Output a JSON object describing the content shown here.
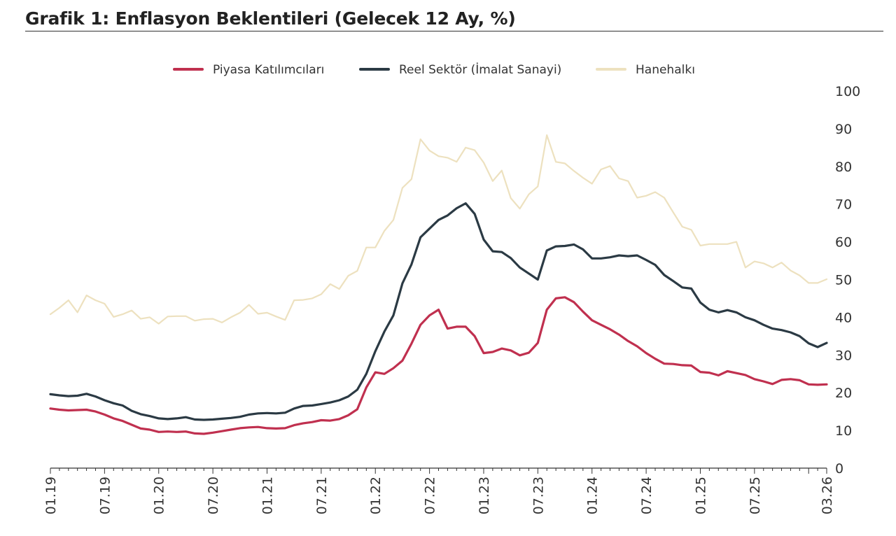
{
  "title": "Grafik 1: Enflasyon Beklentileri (Gelecek 12 Ay, %)",
  "chart_data": {
    "type": "line",
    "title": "Grafik 1: Enflasyon Beklentileri (Gelecek 12 Ay, %)",
    "ylim": [
      0,
      100
    ],
    "y_ticks": [
      0,
      10,
      20,
      30,
      40,
      50,
      60,
      70,
      80,
      90,
      100
    ],
    "x_tick_labels": [
      "01.19",
      "07.19",
      "01.20",
      "07.20",
      "01.21",
      "07.21",
      "01.22",
      "07.22",
      "01.23",
      "07.23",
      "01.24",
      "07.24",
      "01.25",
      "07.25",
      "03.26"
    ],
    "x_start": "01.19",
    "x_end": "03.26",
    "grid": false,
    "legend_position": "top",
    "series": [
      {
        "name": "Piyasa Katılımcıları",
        "color": "#c0304f",
        "values": [
          15.8,
          15.5,
          15.3,
          15.4,
          15.5,
          15.0,
          14.2,
          13.2,
          12.5,
          11.5,
          10.5,
          10.2,
          9.6,
          9.7,
          9.6,
          9.7,
          9.2,
          9.1,
          9.4,
          9.8,
          10.2,
          10.6,
          10.8,
          10.9,
          10.6,
          10.5,
          10.6,
          11.4,
          11.9,
          12.2,
          12.7,
          12.6,
          13.0,
          14.0,
          15.6,
          21.4,
          25.4,
          25.0,
          26.5,
          28.5,
          33.0,
          38.0,
          40.5,
          42.0,
          37.0,
          37.5,
          37.5,
          35.0,
          30.5,
          30.8,
          31.7,
          31.2,
          29.9,
          30.6,
          33.2,
          42.0,
          45.0,
          45.3,
          44.0,
          41.5,
          39.2,
          38.0,
          36.8,
          35.4,
          33.7,
          32.3,
          30.5,
          29.0,
          27.7,
          27.6,
          27.3,
          27.2,
          25.5,
          25.3,
          24.6,
          25.7,
          25.2,
          24.7,
          23.6,
          23.0,
          22.3,
          23.4,
          23.6,
          23.3,
          22.2,
          22.1,
          22.2
        ]
      },
      {
        "name": "Reel Sektör (İmalat Sanayi)",
        "color": "#2b3a44",
        "values": [
          19.6,
          19.3,
          19.1,
          19.2,
          19.7,
          19.0,
          18.0,
          17.2,
          16.6,
          15.2,
          14.3,
          13.8,
          13.2,
          13.0,
          13.2,
          13.5,
          12.9,
          12.8,
          12.9,
          13.1,
          13.3,
          13.6,
          14.2,
          14.5,
          14.6,
          14.5,
          14.7,
          15.8,
          16.5,
          16.6,
          17.0,
          17.4,
          18.0,
          19.0,
          20.8,
          25.0,
          31.0,
          36.2,
          40.5,
          49.0,
          54.0,
          61.2,
          63.5,
          65.8,
          67.0,
          68.9,
          70.2,
          67.4,
          60.6,
          57.5,
          57.3,
          55.7,
          53.2,
          51.6,
          50.0,
          57.7,
          58.8,
          58.9,
          59.3,
          58.0,
          55.6,
          55.6,
          55.9,
          56.4,
          56.2,
          56.4,
          55.2,
          53.9,
          51.2,
          49.6,
          47.9,
          47.6,
          43.9,
          42.0,
          41.3,
          41.9,
          41.3,
          40.0,
          39.2,
          38.0,
          37.0,
          36.6,
          36.0,
          35.0,
          33.1,
          32.1,
          33.2
        ]
      },
      {
        "name": "Hanehalkı",
        "color": "#ede1bf",
        "values": [
          40.8,
          42.5,
          44.5,
          41.3,
          45.8,
          44.5,
          43.6,
          40.1,
          40.8,
          41.8,
          39.6,
          40.0,
          38.3,
          40.2,
          40.3,
          40.3,
          39.1,
          39.5,
          39.6,
          38.6,
          40.0,
          41.2,
          43.3,
          40.9,
          41.2,
          40.2,
          39.3,
          44.5,
          44.6,
          45.0,
          46.1,
          48.8,
          47.5,
          51.0,
          52.3,
          58.5,
          58.5,
          62.9,
          65.8,
          74.3,
          76.6,
          87.2,
          84.2,
          82.7,
          82.3,
          81.2,
          85.0,
          84.3,
          81.0,
          76.1,
          78.9,
          71.6,
          68.8,
          72.6,
          74.7,
          88.3,
          81.2,
          80.8,
          78.8,
          77.0,
          75.4,
          79.2,
          80.1,
          76.8,
          76.1,
          71.7,
          72.2,
          73.2,
          71.7,
          67.8,
          64.0,
          63.2,
          59.0,
          59.4,
          59.4,
          59.4,
          60.0,
          53.2,
          54.8,
          54.3,
          53.2,
          54.5,
          52.4,
          51.1,
          49.1,
          49.1,
          50.1
        ]
      }
    ]
  }
}
